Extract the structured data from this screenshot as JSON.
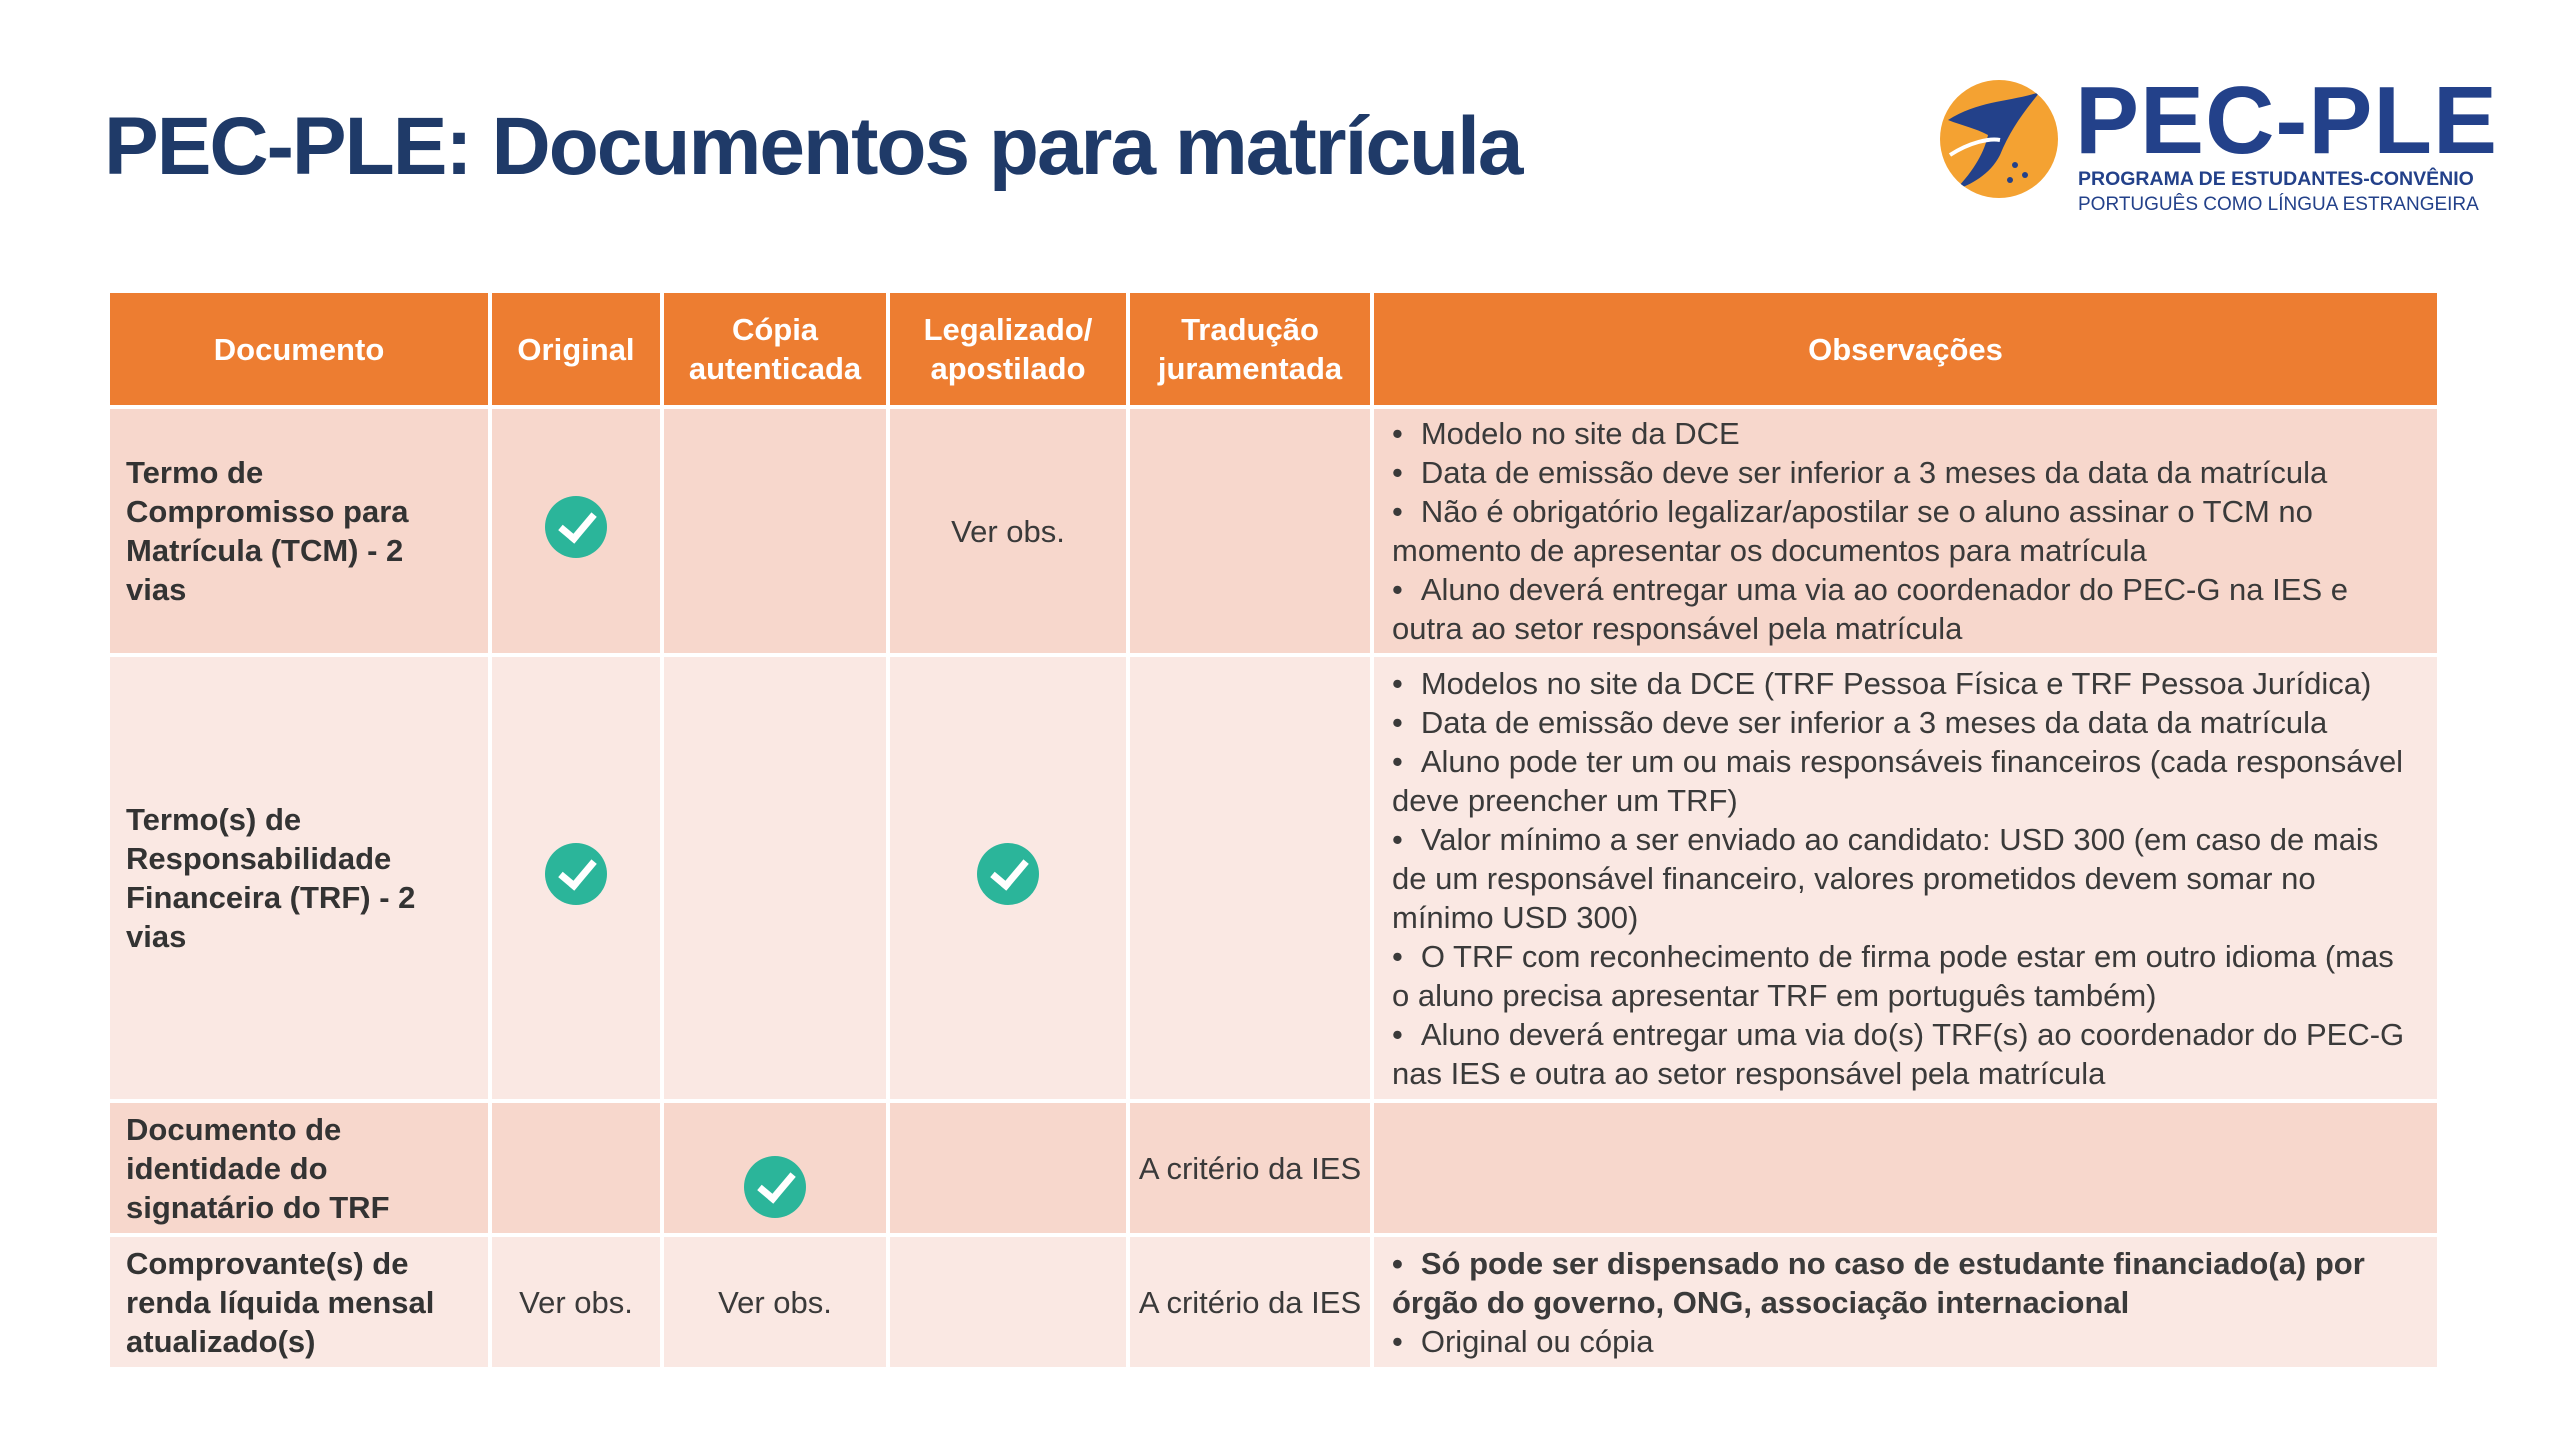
{
  "title": "PEC-PLE: Documentos para matrícula",
  "logo": {
    "name": "PEC-PLE",
    "line1": "PROGRAMA DE ESTUDANTES-CONVÊNIO",
    "line2": "PORTUGUÊS COMO LÍNGUA ESTRANGEIRA"
  },
  "colors": {
    "header": "#ed7d31",
    "title": "#1f3a68",
    "check": "#2bb59a"
  },
  "headers": [
    "Documento",
    "Original",
    "Cópia autenticada",
    "Legalizado/ apostilado",
    "Tradução juramentada",
    "Observações"
  ],
  "rows": [
    {
      "doc": "Termo de Compromisso para Matrícula (TCM) - 2 vias",
      "original": "check",
      "copia": "",
      "legalizado": "Ver obs.",
      "traducao": "",
      "obs": [
        "Modelo no site da DCE",
        "Data de emissão deve ser inferior a 3 meses da data da matrícula",
        "Não é obrigatório legalizar/apostilar se o aluno assinar o TCM no momento de apresentar os documentos para matrícula",
        "Aluno deverá entregar uma via ao coordenador do PEC-G na IES e outra ao setor responsável pela matrícula"
      ]
    },
    {
      "doc": "Termo(s) de Responsabilidade Financeira (TRF) - 2 vias",
      "original": "check",
      "copia": "",
      "legalizado": "check",
      "traducao": "",
      "obs": [
        "Modelos no site da DCE (TRF Pessoa Física e TRF Pessoa Jurídica)",
        "Data de emissão deve ser inferior a 3 meses da data da matrícula",
        "Aluno pode ter um ou mais responsáveis financeiros (cada responsável deve preencher um TRF)",
        "Valor mínimo a ser enviado ao candidato: USD 300 (em caso de mais de um responsável financeiro, valores prometidos devem somar no mínimo USD 300)",
        "O TRF com reconhecimento de firma pode estar em outro idioma (mas o aluno precisa apresentar TRF em português também)",
        "Aluno deverá entregar uma via do(s) TRF(s) ao coordenador do PEC-G nas IES e outra ao setor responsável pela matrícula"
      ]
    },
    {
      "doc": "Documento de identidade do signatário do TRF",
      "original": "",
      "copia": "check",
      "legalizado": "",
      "traducao": "A critério da IES",
      "obs": []
    },
    {
      "doc": "Comprovante(s) de renda líquida mensal atualizado(s)",
      "original": "Ver obs.",
      "copia": "Ver obs.",
      "legalizado": "",
      "traducao": "A critério da IES",
      "obs": [
        "Só pode ser dispensado no caso de estudante financiado(a) por órgão do governo, ONG, associação internacional",
        "Original ou cópia"
      ]
    }
  ]
}
